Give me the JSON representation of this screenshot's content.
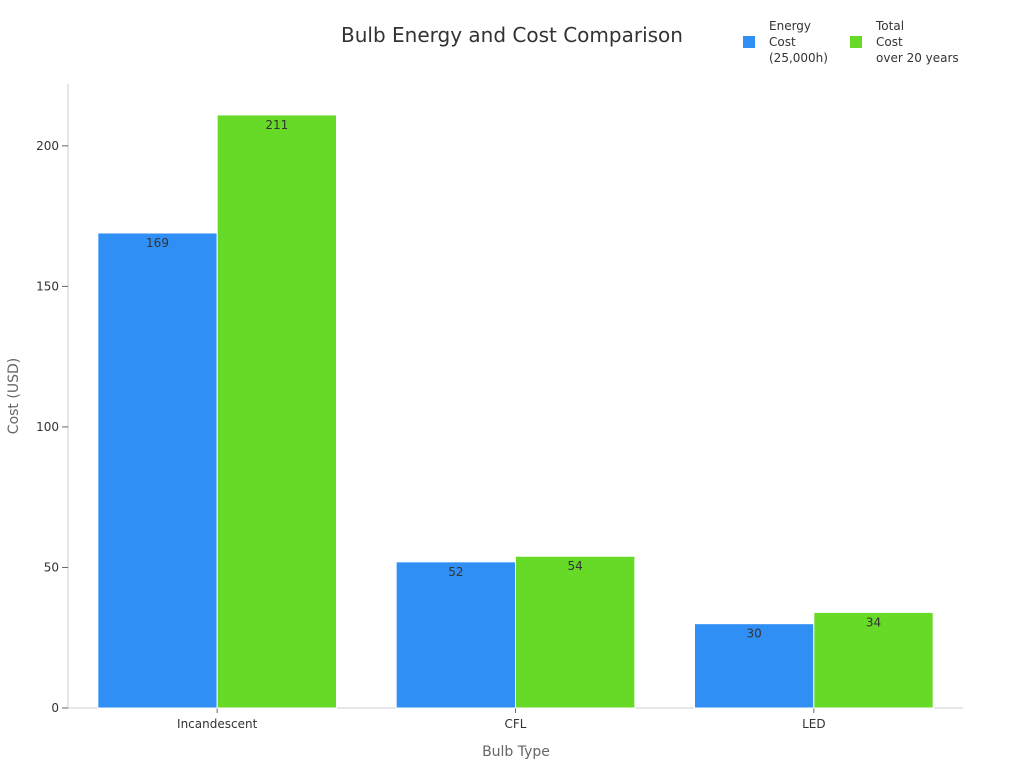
{
  "chart_data": {
    "type": "bar",
    "title": "Bulb Energy and Cost Comparison",
    "xlabel": "Bulb Type",
    "ylabel": "Cost (USD)",
    "categories": [
      "Incandescent",
      "CFL",
      "LED"
    ],
    "series": [
      {
        "name": "Energy Cost (25,000h)",
        "legend_lines": [
          "Energy",
          "Cost",
          "(25,000h)"
        ],
        "color": "#2f8ff5",
        "values": [
          169,
          52,
          30
        ]
      },
      {
        "name": "Total Cost over 20 years",
        "legend_lines": [
          "Total",
          "Cost",
          "over 20 years"
        ],
        "color": "#66da26",
        "values": [
          211,
          54,
          34
        ]
      }
    ],
    "ylim": [
      0,
      222
    ],
    "yticks": [
      0,
      50,
      100,
      150,
      200
    ],
    "grid": false,
    "legend_position": "top-right",
    "data_labels": true
  }
}
